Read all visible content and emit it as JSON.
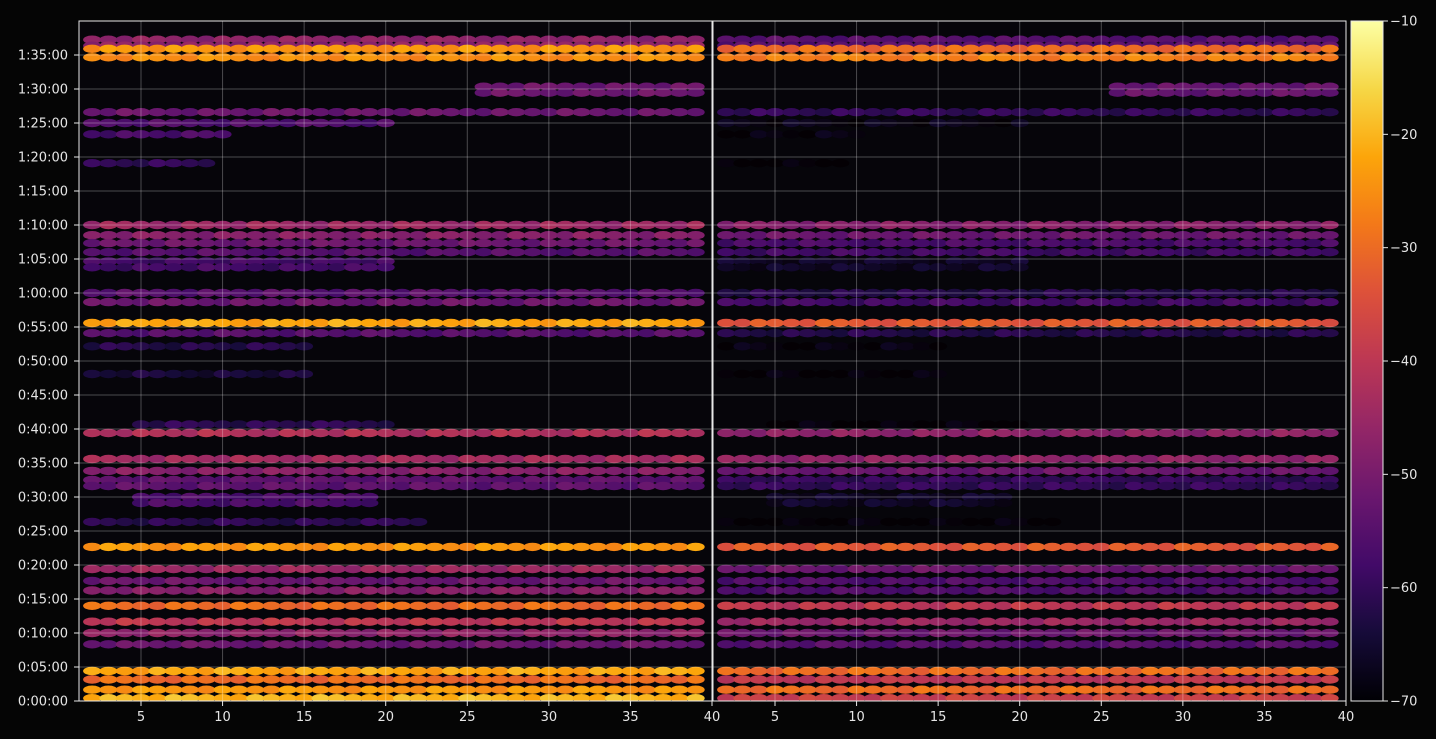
{
  "chart_data": {
    "type": "heatmap",
    "title": "",
    "xlabel": "",
    "ylabel": "",
    "grid": true,
    "panels": [
      {
        "name": "",
        "xlim": [
          1.2,
          40
        ],
        "x_ticks": [
          5,
          10,
          15,
          20,
          25,
          30,
          35,
          40
        ]
      },
      {
        "name": "",
        "xlim": [
          1.2,
          40
        ],
        "x_ticks": [
          5,
          10,
          15,
          20,
          25,
          30,
          35,
          40
        ]
      }
    ],
    "x_range": [
      2,
      39
    ],
    "ylim_seconds": [
      0,
      6000
    ],
    "y_tick_labels": [
      "0:00:00",
      "0:05:00",
      "0:10:00",
      "0:15:00",
      "0:20:00",
      "0:25:00",
      "0:30:00",
      "0:35:00",
      "0:40:00",
      "0:45:00",
      "0:50:00",
      "0:55:00",
      "1:00:00",
      "1:05:00",
      "1:10:00",
      "1:15:00",
      "1:20:00",
      "1:25:00",
      "1:30:00",
      "1:35:00"
    ],
    "y_tick_seconds": [
      0,
      300,
      600,
      900,
      1200,
      1500,
      1800,
      2100,
      2400,
      2700,
      3000,
      3300,
      3600,
      3900,
      4200,
      4500,
      4800,
      5100,
      5400,
      5700
    ],
    "colorbar": {
      "colormap": "inferno",
      "min": -70,
      "max": -10,
      "tick_values": [
        -70,
        -60,
        -50,
        -40,
        -30,
        -20,
        -10
      ],
      "tick_labels": [
        "−70",
        "−60",
        "−50",
        "−40",
        "−30",
        "−20",
        "−10"
      ]
    },
    "bands": [
      {
        "t": 5835,
        "left": -47,
        "right": -55,
        "x_from": 2,
        "x_to": 39,
        "thickness": 2
      },
      {
        "t": 5755,
        "left": -24,
        "right": -30,
        "x_from": 2,
        "x_to": 39,
        "thickness": 1
      },
      {
        "t": 5680,
        "left": -25,
        "right": -27,
        "x_from": 2,
        "x_to": 39,
        "thickness": 1
      },
      {
        "t": 5420,
        "left": -52,
        "right": -53,
        "x_from": 26,
        "x_to": 39,
        "thickness": 2
      },
      {
        "t": 5195,
        "left": -52,
        "right": -60,
        "x_from": 2,
        "x_to": 39,
        "thickness": 1
      },
      {
        "t": 5100,
        "left": -56,
        "right": -68,
        "x_from": 2,
        "x_to": 20,
        "thickness": 1
      },
      {
        "t": 5000,
        "left": -57,
        "right": -69,
        "x_from": 2,
        "x_to": 10,
        "thickness": 1
      },
      {
        "t": 4745,
        "left": -60,
        "right": -70,
        "x_from": 2,
        "x_to": 9,
        "thickness": 1
      },
      {
        "t": 4200,
        "left": -45,
        "right": -48,
        "x_from": 2,
        "x_to": 39,
        "thickness": 1
      },
      {
        "t": 4110,
        "left": -48,
        "right": -52,
        "x_from": 2,
        "x_to": 39,
        "thickness": 1
      },
      {
        "t": 4040,
        "left": -52,
        "right": -57,
        "x_from": 2,
        "x_to": 39,
        "thickness": 1
      },
      {
        "t": 3960,
        "left": -55,
        "right": -58,
        "x_from": 2,
        "x_to": 39,
        "thickness": 1
      },
      {
        "t": 3880,
        "left": -58,
        "right": -66,
        "x_from": 2,
        "x_to": 20,
        "thickness": 2
      },
      {
        "t": 3600,
        "left": -55,
        "right": -62,
        "x_from": 2,
        "x_to": 39,
        "thickness": 1
      },
      {
        "t": 3520,
        "left": -52,
        "right": -58,
        "x_from": 2,
        "x_to": 39,
        "thickness": 1
      },
      {
        "t": 3335,
        "left": -22,
        "right": -33,
        "x_from": 2,
        "x_to": 39,
        "thickness": 1
      },
      {
        "t": 3245,
        "left": -55,
        "right": -62,
        "x_from": 2,
        "x_to": 39,
        "thickness": 1
      },
      {
        "t": 3130,
        "left": -62,
        "right": -69,
        "x_from": 2,
        "x_to": 15,
        "thickness": 1
      },
      {
        "t": 2885,
        "left": -64,
        "right": -70,
        "x_from": 2,
        "x_to": 15,
        "thickness": 1
      },
      {
        "t": 2440,
        "left": -61,
        "right": -70,
        "x_from": 5,
        "x_to": 20,
        "thickness": 1
      },
      {
        "t": 2365,
        "left": -42,
        "right": -47,
        "x_from": 2,
        "x_to": 39,
        "thickness": 1
      },
      {
        "t": 2135,
        "left": -44,
        "right": -47,
        "x_from": 2,
        "x_to": 39,
        "thickness": 1
      },
      {
        "t": 2030,
        "left": -48,
        "right": -52,
        "x_from": 2,
        "x_to": 39,
        "thickness": 1
      },
      {
        "t": 1950,
        "left": -54,
        "right": -60,
        "x_from": 2,
        "x_to": 39,
        "thickness": 2
      },
      {
        "t": 1800,
        "left": -57,
        "right": -66,
        "x_from": 5,
        "x_to": 19,
        "thickness": 2
      },
      {
        "t": 1580,
        "left": -61,
        "right": -70,
        "x_from": 2,
        "x_to": 22,
        "thickness": 1
      },
      {
        "t": 1360,
        "left": -24,
        "right": -33,
        "x_from": 2,
        "x_to": 39,
        "thickness": 1
      },
      {
        "t": 1165,
        "left": -45,
        "right": -52,
        "x_from": 2,
        "x_to": 39,
        "thickness": 1
      },
      {
        "t": 1060,
        "left": -52,
        "right": -56,
        "x_from": 2,
        "x_to": 39,
        "thickness": 1
      },
      {
        "t": 975,
        "left": -48,
        "right": -56,
        "x_from": 2,
        "x_to": 39,
        "thickness": 1
      },
      {
        "t": 840,
        "left": -30,
        "right": -40,
        "x_from": 2,
        "x_to": 39,
        "thickness": 1
      },
      {
        "t": 700,
        "left": -40,
        "right": -45,
        "x_from": 2,
        "x_to": 39,
        "thickness": 1
      },
      {
        "t": 600,
        "left": -47,
        "right": -52,
        "x_from": 2,
        "x_to": 39,
        "thickness": 1
      },
      {
        "t": 500,
        "left": -52,
        "right": -55,
        "x_from": 2,
        "x_to": 39,
        "thickness": 1
      },
      {
        "t": 265,
        "left": -22,
        "right": -30,
        "x_from": 2,
        "x_to": 39,
        "thickness": 1
      },
      {
        "t": 190,
        "left": -30,
        "right": -40,
        "x_from": 2,
        "x_to": 39,
        "thickness": 1
      },
      {
        "t": 100,
        "left": -24,
        "right": -30,
        "x_from": 2,
        "x_to": 39,
        "thickness": 1
      },
      {
        "t": 25,
        "left": -20,
        "right": -38,
        "x_from": 2,
        "x_to": 39,
        "thickness": 1
      }
    ]
  }
}
